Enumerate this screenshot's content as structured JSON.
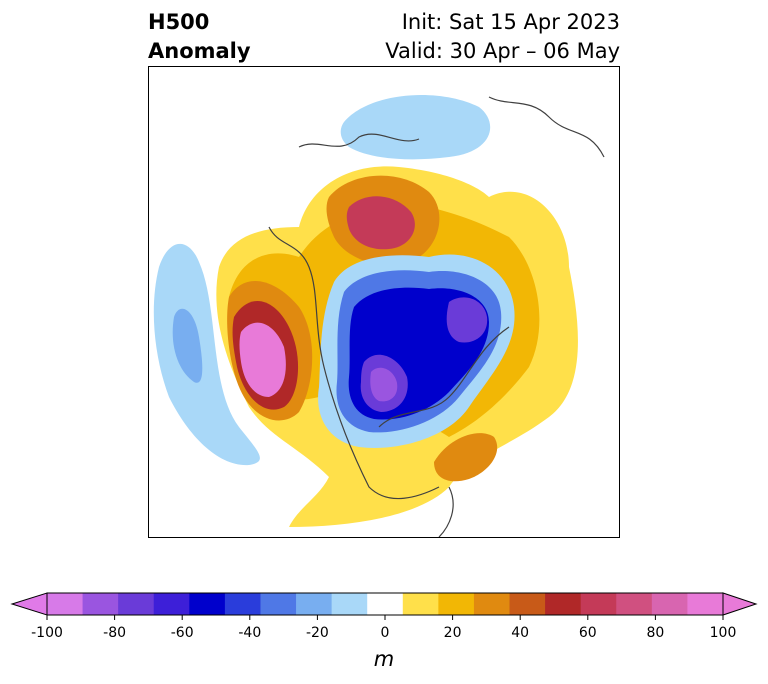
{
  "title": {
    "left_line1": "H500",
    "left_line2": "Anomaly",
    "right_line1": "Init: Sat 15 Apr 2023",
    "right_line2": "Valid: 30 Apr – 06 May"
  },
  "colorbar": {
    "unit": "m",
    "ticks": [
      "-100",
      "-80",
      "-60",
      "-40",
      "-20",
      "0",
      "20",
      "40",
      "60",
      "80",
      "100"
    ],
    "colors": [
      "#d77ae8",
      "#9a55e0",
      "#6a3bd8",
      "#3d1fd8",
      "#0000cc",
      "#2a3ddb",
      "#4f78e6",
      "#78aef0",
      "#a9d8f8",
      "#ffffff",
      "#ffe04a",
      "#f2b705",
      "#e08a10",
      "#c85a18",
      "#b02828",
      "#c43a58",
      "#d05080",
      "#d865b0",
      "#e87ad8"
    ],
    "min_color": "#e07ae8",
    "max_color": "#e87ad8"
  }
}
